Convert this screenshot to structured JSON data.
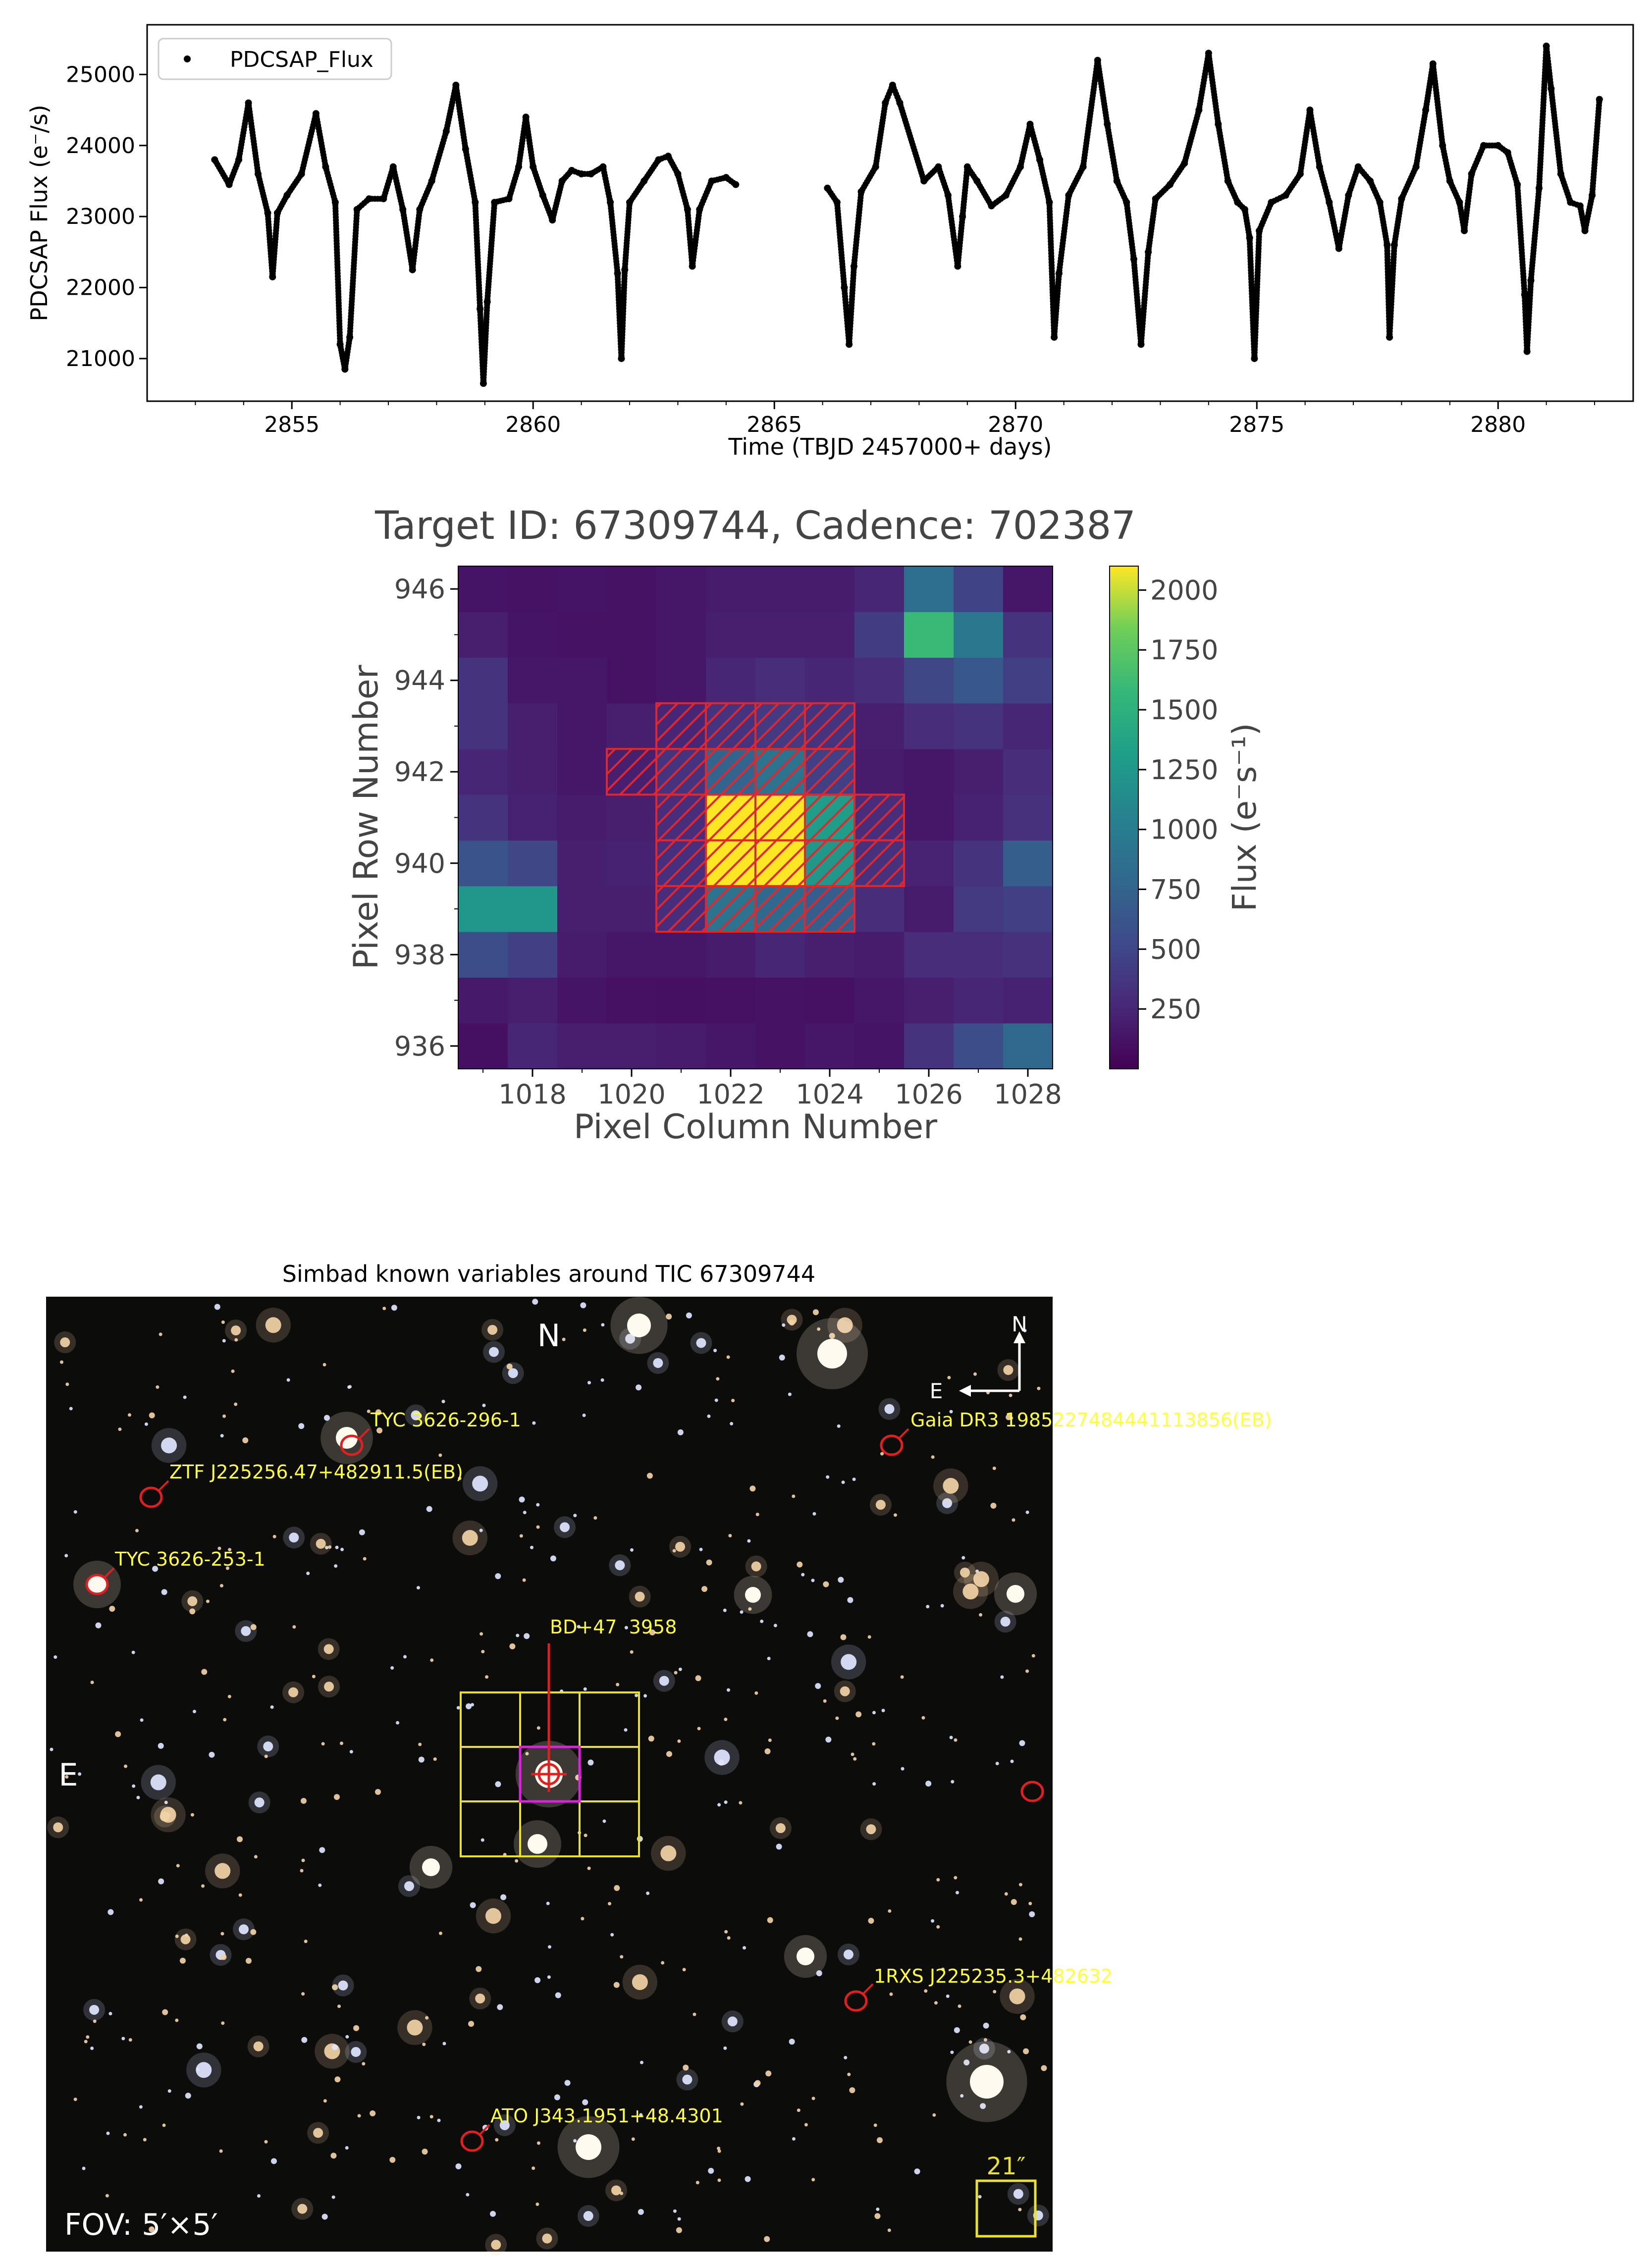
{
  "chart_data": [
    {
      "type": "scatter",
      "xlabel": "Time (TBJD 2457000+ days)",
      "ylabel": "PDCSAP Flux (e⁻/s)",
      "xlim": [
        2852.0,
        2882.8
      ],
      "ylim": [
        20400,
        25700
      ],
      "xticks": [
        "2855",
        "2860",
        "2865",
        "2870",
        "2875",
        "2880"
      ],
      "yticks": [
        "21000",
        "22000",
        "23000",
        "24000",
        "25000"
      ],
      "legend": "PDCSAP_Flux",
      "legend_position": "top-left",
      "series": [
        {
          "name": "PDCSAP_Flux",
          "points": [
            [
              2853.4,
              23800
            ],
            [
              2853.7,
              23450
            ],
            [
              2853.9,
              23800
            ],
            [
              2854.1,
              24600
            ],
            [
              2854.3,
              23600
            ],
            [
              2854.5,
              23050
            ],
            [
              2854.6,
              22150
            ],
            [
              2854.7,
              23050
            ],
            [
              2854.9,
              23300
            ],
            [
              2855.2,
              23600
            ],
            [
              2855.5,
              24450
            ],
            [
              2855.7,
              23700
            ],
            [
              2855.9,
              23200
            ],
            [
              2856.0,
              21200
            ],
            [
              2856.1,
              20850
            ],
            [
              2856.2,
              21300
            ],
            [
              2856.35,
              23100
            ],
            [
              2856.6,
              23250
            ],
            [
              2856.9,
              23250
            ],
            [
              2857.1,
              23700
            ],
            [
              2857.3,
              23100
            ],
            [
              2857.5,
              22250
            ],
            [
              2857.65,
              23100
            ],
            [
              2857.9,
              23500
            ],
            [
              2858.2,
              24200
            ],
            [
              2858.4,
              24850
            ],
            [
              2858.6,
              23950
            ],
            [
              2858.8,
              23200
            ],
            [
              2858.9,
              21700
            ],
            [
              2858.97,
              20650
            ],
            [
              2859.05,
              21800
            ],
            [
              2859.2,
              23200
            ],
            [
              2859.5,
              23250
            ],
            [
              2859.7,
              23700
            ],
            [
              2859.85,
              24400
            ],
            [
              2860.0,
              23700
            ],
            [
              2860.2,
              23300
            ],
            [
              2860.4,
              22950
            ],
            [
              2860.6,
              23500
            ],
            [
              2860.8,
              23650
            ],
            [
              2861.0,
              23600
            ],
            [
              2861.2,
              23600
            ],
            [
              2861.45,
              23700
            ],
            [
              2861.6,
              23200
            ],
            [
              2861.75,
              22200
            ],
            [
              2861.83,
              21000
            ],
            [
              2861.9,
              22250
            ],
            [
              2862.0,
              23200
            ],
            [
              2862.3,
              23500
            ],
            [
              2862.6,
              23800
            ],
            [
              2862.8,
              23850
            ],
            [
              2863.0,
              23600
            ],
            [
              2863.2,
              23100
            ],
            [
              2863.3,
              22300
            ],
            [
              2863.45,
              23100
            ],
            [
              2863.7,
              23500
            ],
            [
              2864.0,
              23550
            ],
            [
              2864.2,
              23450
            ],
            [
              2866.1,
              23400
            ],
            [
              2866.3,
              23200
            ],
            [
              2866.45,
              22000
            ],
            [
              2866.55,
              21200
            ],
            [
              2866.65,
              22300
            ],
            [
              2866.8,
              23350
            ],
            [
              2867.1,
              23700
            ],
            [
              2867.3,
              24600
            ],
            [
              2867.45,
              24850
            ],
            [
              2867.6,
              24600
            ],
            [
              2868.1,
              23500
            ],
            [
              2868.4,
              23700
            ],
            [
              2868.6,
              23300
            ],
            [
              2868.8,
              22300
            ],
            [
              2868.9,
              23000
            ],
            [
              2869.0,
              23700
            ],
            [
              2869.2,
              23500
            ],
            [
              2869.5,
              23150
            ],
            [
              2869.8,
              23300
            ],
            [
              2870.1,
              23700
            ],
            [
              2870.3,
              24300
            ],
            [
              2870.5,
              23800
            ],
            [
              2870.7,
              23200
            ],
            [
              2870.8,
              21300
            ],
            [
              2870.9,
              22200
            ],
            [
              2871.1,
              23300
            ],
            [
              2871.4,
              23700
            ],
            [
              2871.7,
              25200
            ],
            [
              2871.9,
              24300
            ],
            [
              2872.1,
              23500
            ],
            [
              2872.3,
              23200
            ],
            [
              2872.45,
              22400
            ],
            [
              2872.6,
              21200
            ],
            [
              2872.75,
              22500
            ],
            [
              2872.9,
              23250
            ],
            [
              2873.2,
              23450
            ],
            [
              2873.5,
              23750
            ],
            [
              2873.8,
              24500
            ],
            [
              2874.0,
              25300
            ],
            [
              2874.2,
              24300
            ],
            [
              2874.4,
              23500
            ],
            [
              2874.6,
              23200
            ],
            [
              2874.75,
              23100
            ],
            [
              2874.85,
              22700
            ],
            [
              2874.95,
              21000
            ],
            [
              2875.05,
              22800
            ],
            [
              2875.3,
              23200
            ],
            [
              2875.6,
              23300
            ],
            [
              2875.9,
              23600
            ],
            [
              2876.1,
              24500
            ],
            [
              2876.3,
              23700
            ],
            [
              2876.5,
              23200
            ],
            [
              2876.7,
              22550
            ],
            [
              2876.9,
              23300
            ],
            [
              2877.1,
              23700
            ],
            [
              2877.35,
              23500
            ],
            [
              2877.55,
              23200
            ],
            [
              2877.7,
              22600
            ],
            [
              2877.75,
              21300
            ],
            [
              2877.85,
              22600
            ],
            [
              2878.0,
              23250
            ],
            [
              2878.3,
              23700
            ],
            [
              2878.5,
              24500
            ],
            [
              2878.65,
              25150
            ],
            [
              2878.85,
              24000
            ],
            [
              2879.0,
              23500
            ],
            [
              2879.2,
              23200
            ],
            [
              2879.3,
              22800
            ],
            [
              2879.45,
              23600
            ],
            [
              2879.7,
              24000
            ],
            [
              2880.0,
              24000
            ],
            [
              2880.2,
              23900
            ],
            [
              2880.4,
              23450
            ],
            [
              2880.55,
              21900
            ],
            [
              2880.6,
              21100
            ],
            [
              2880.68,
              22100
            ],
            [
              2880.85,
              23400
            ],
            [
              2881.0,
              25400
            ],
            [
              2881.1,
              24800
            ],
            [
              2881.3,
              23600
            ],
            [
              2881.5,
              23200
            ],
            [
              2881.7,
              23150
            ],
            [
              2881.8,
              22800
            ],
            [
              2881.95,
              23300
            ],
            [
              2882.1,
              24650
            ]
          ]
        }
      ]
    },
    {
      "type": "heatmap",
      "title": "Target ID: 67309744, Cadence: 702387",
      "xlabel": "Pixel Column Number",
      "ylabel": "Pixel Row Number",
      "x_start": 1017,
      "y_start": 936,
      "xticks": [
        "1018",
        "1020",
        "1022",
        "1024",
        "1026",
        "1028"
      ],
      "yticks": [
        "936",
        "938",
        "940",
        "942",
        "944",
        "946"
      ],
      "colorbar_label": "Flux (e⁻s⁻¹)",
      "colorbar_range": [
        0,
        2100
      ],
      "colorbar_ticks": [
        "250",
        "500",
        "750",
        "1000",
        "1250",
        "1500",
        "1750",
        "2000"
      ],
      "colormap": "viridis",
      "values_by_row_bottom_up": [
        [
          100,
          250,
          200,
          200,
          180,
          150,
          120,
          150,
          130,
          350,
          550,
          800
        ],
        [
          160,
          200,
          130,
          110,
          100,
          110,
          120,
          110,
          150,
          200,
          250,
          220
        ],
        [
          550,
          450,
          180,
          150,
          150,
          180,
          250,
          200,
          180,
          300,
          300,
          330
        ],
        [
          1250,
          1250,
          200,
          200,
          300,
          900,
          800,
          700,
          300,
          180,
          400,
          450
        ],
        [
          600,
          500,
          200,
          220,
          320,
          2100,
          2100,
          1250,
          330,
          230,
          350,
          700
        ],
        [
          350,
          220,
          180,
          200,
          300,
          2100,
          2100,
          1300,
          300,
          150,
          220,
          330
        ],
        [
          250,
          200,
          150,
          200,
          350,
          750,
          900,
          450,
          180,
          150,
          200,
          300
        ],
        [
          350,
          200,
          150,
          200,
          250,
          350,
          400,
          350,
          200,
          300,
          350,
          250
        ],
        [
          350,
          150,
          150,
          120,
          150,
          250,
          300,
          250,
          300,
          500,
          650,
          450
        ],
        [
          200,
          130,
          120,
          120,
          150,
          200,
          200,
          200,
          420,
          1600,
          950,
          350
        ],
        [
          130,
          120,
          130,
          120,
          150,
          180,
          180,
          180,
          250,
          850,
          480,
          150
        ]
      ],
      "aperture_cells": [
        [
          1021,
          939
        ],
        [
          1022,
          939
        ],
        [
          1023,
          939
        ],
        [
          1024,
          939
        ],
        [
          1021,
          940
        ],
        [
          1022,
          940
        ],
        [
          1023,
          940
        ],
        [
          1024,
          940
        ],
        [
          1025,
          940
        ],
        [
          1021,
          941
        ],
        [
          1022,
          941
        ],
        [
          1023,
          941
        ],
        [
          1024,
          941
        ],
        [
          1025,
          941
        ],
        [
          1020,
          942
        ],
        [
          1021,
          942
        ],
        [
          1022,
          942
        ],
        [
          1023,
          942
        ],
        [
          1024,
          942
        ],
        [
          1021,
          943
        ],
        [
          1022,
          943
        ],
        [
          1023,
          943
        ],
        [
          1024,
          943
        ]
      ],
      "aperture_color": "#e3262b"
    }
  ],
  "sky": {
    "title": "Simbad known variables around TIC 67309744",
    "north_label": "N",
    "east_label": "E",
    "compass_n": "N",
    "compass_e": "E",
    "fov": "FOV: 5′×5′",
    "scale": "21″",
    "target_label": "BD+47  3958",
    "labels": [
      "TYC 3626-296-1",
      "ZTF J225256.47+482911.5(EB)",
      "TYC 3626-253-1",
      "Gaia DR3 1985227484441113856(EB)",
      "1RXS J225235.3+482632",
      "ATO J343.1951+48.4301"
    ]
  }
}
